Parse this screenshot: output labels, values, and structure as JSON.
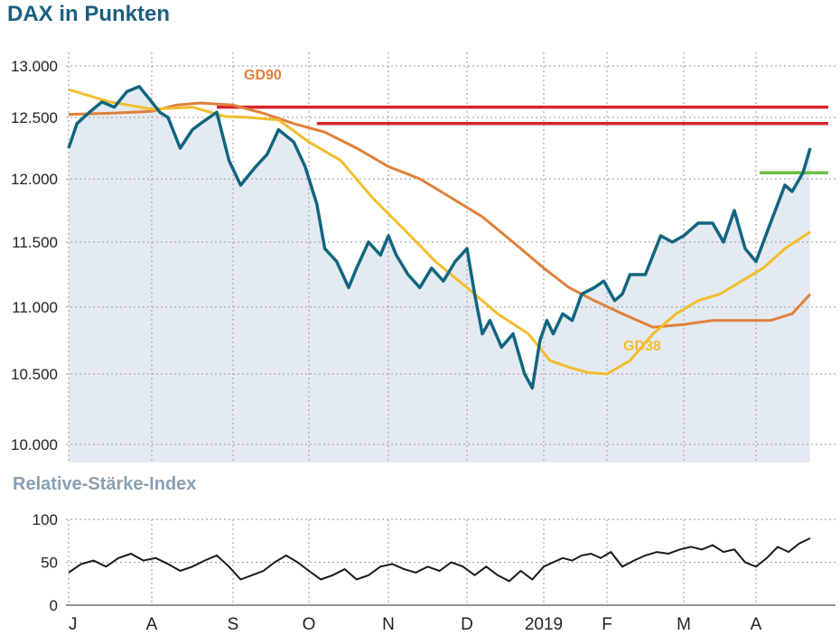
{
  "header": {
    "title": "DAX in Punkten",
    "rsi_title": "Relative-Stärke-Index"
  },
  "colors": {
    "dax_line": "#12657f",
    "dax_area": "#e4eaf1",
    "gd90": "#e0803a",
    "gd38": "#f2bd2e",
    "resistance": "#d9232e",
    "support": "#6cbe45",
    "rsi_line": "#1a1a1a",
    "grid": "#9a9a9a"
  },
  "chart_data": [
    {
      "type": "line",
      "title": "DAX in Punkten",
      "x_months": [
        "J",
        "A",
        "S",
        "O",
        "N",
        "D",
        "2019",
        "F",
        "M",
        "A"
      ],
      "x_range_months": [
        0,
        9.9
      ],
      "yticks": [
        "13.000",
        "12.500",
        "12.000",
        "11.500",
        "11.000",
        "10.500",
        "10.000"
      ],
      "ytick_values": [
        13000,
        12500,
        12000,
        11500,
        11000,
        10500,
        10000
      ],
      "ylim": [
        9900,
        13100
      ],
      "grid": "dotted",
      "series": [
        {
          "key": "dax",
          "fill_area": true,
          "x": [
            0,
            0.1,
            0.25,
            0.4,
            0.55,
            0.7,
            0.85,
            0.95,
            1.0,
            1.1,
            1.2,
            1.35,
            1.5,
            1.6,
            1.8,
            1.95,
            2.1,
            2.3,
            2.45,
            2.6,
            2.8,
            2.95,
            3.1,
            3.2,
            3.35,
            3.5,
            3.6,
            3.75,
            3.9,
            4.0,
            4.1,
            4.25,
            4.4,
            4.55,
            4.7,
            4.85,
            5.0,
            5.1,
            5.2,
            5.3,
            5.45,
            5.6,
            5.75,
            5.85,
            5.95,
            6.05,
            6.15,
            6.3,
            6.45,
            6.6,
            6.8,
            6.95,
            7.1,
            7.2,
            7.3,
            7.5,
            7.7,
            7.85,
            8.0,
            8.2,
            8.4,
            8.55,
            8.7,
            8.85,
            9.0,
            9.2,
            9.4,
            9.5,
            9.65,
            9.75
          ],
          "y": [
            12250,
            12450,
            12550,
            12650,
            12600,
            12750,
            12800,
            12700,
            12650,
            12550,
            12500,
            12250,
            12400,
            12450,
            12550,
            12150,
            11950,
            12100,
            12200,
            12400,
            12300,
            12100,
            11800,
            11450,
            11350,
            11150,
            11300,
            11500,
            11400,
            11550,
            11400,
            11250,
            11150,
            11300,
            11200,
            11350,
            11450,
            11100,
            10800,
            10900,
            10700,
            10800,
            10500,
            10400,
            10750,
            10900,
            10800,
            10950,
            10900,
            11100,
            11150,
            11200,
            11050,
            11100,
            11250,
            11250,
            11550,
            11500,
            11550,
            11650,
            11650,
            11500,
            11750,
            11450,
            11350,
            11650,
            11950,
            11900,
            12050,
            12250
          ]
        },
        {
          "key": "gd90",
          "name": "GD90",
          "x": [
            0,
            0.5,
            1.0,
            1.3,
            1.6,
            2.0,
            2.4,
            2.8,
            3.2,
            3.6,
            4.0,
            4.4,
            4.8,
            5.2,
            5.6,
            6.0,
            6.4,
            6.8,
            7.2,
            7.6,
            8.0,
            8.4,
            8.8,
            9.2,
            9.5,
            9.75
          ],
          "y": [
            12530,
            12540,
            12560,
            12620,
            12640,
            12620,
            12540,
            12450,
            12380,
            12250,
            12100,
            12000,
            11850,
            11700,
            11500,
            11300,
            11150,
            11050,
            10950,
            10850,
            10870,
            10900,
            10900,
            10900,
            10950,
            11100
          ]
        },
        {
          "key": "gd38",
          "name": "GD38",
          "x": [
            0,
            0.5,
            1.0,
            1.5,
            1.9,
            2.2,
            2.6,
            3.0,
            3.4,
            3.8,
            4.2,
            4.6,
            5.0,
            5.4,
            5.8,
            6.1,
            6.4,
            6.7,
            7.0,
            7.3,
            7.6,
            7.9,
            8.2,
            8.5,
            8.8,
            9.1,
            9.4,
            9.75
          ],
          "y": [
            12770,
            12650,
            12580,
            12600,
            12510,
            12500,
            12480,
            12300,
            12150,
            11850,
            11600,
            11350,
            11150,
            10950,
            10800,
            10600,
            10550,
            10510,
            10500,
            10600,
            10800,
            10950,
            11050,
            11100,
            11200,
            11300,
            11450,
            11580
          ]
        }
      ],
      "levels": [
        {
          "key": "resistance_upper",
          "y": 12600,
          "x_from": 1.8,
          "x_to": 10.0
        },
        {
          "key": "resistance_lower",
          "y": 12450,
          "x_from": 3.1,
          "x_to": 10.0
        },
        {
          "key": "support",
          "y": 12050,
          "x_from": 9.05,
          "x_to": 10.0
        }
      ],
      "annotations": [
        {
          "key": "gd90_label",
          "text": "GD90",
          "series": "gd90"
        },
        {
          "key": "gd38_label",
          "text": "GD38",
          "series": "gd38"
        }
      ]
    },
    {
      "type": "line",
      "title": "Relative-Stärke-Index",
      "yticks": [
        "100",
        "50",
        "0"
      ],
      "ytick_values": [
        100,
        50,
        0
      ],
      "ylim": [
        0,
        100
      ],
      "grid": "dotted",
      "series": [
        {
          "key": "rsi",
          "x": [
            0,
            0.15,
            0.3,
            0.45,
            0.6,
            0.75,
            0.9,
            1.05,
            1.2,
            1.35,
            1.5,
            1.65,
            1.8,
            1.95,
            2.1,
            2.25,
            2.4,
            2.55,
            2.7,
            2.85,
            3.0,
            3.15,
            3.3,
            3.45,
            3.6,
            3.75,
            3.9,
            4.05,
            4.2,
            4.35,
            4.5,
            4.65,
            4.8,
            4.95,
            5.1,
            5.25,
            5.4,
            5.55,
            5.7,
            5.85,
            6.0,
            6.15,
            6.3,
            6.45,
            6.6,
            6.75,
            6.9,
            7.05,
            7.2,
            7.35,
            7.5,
            7.65,
            7.8,
            7.95,
            8.1,
            8.25,
            8.4,
            8.55,
            8.7,
            8.85,
            9.0,
            9.15,
            9.3,
            9.45,
            9.6,
            9.75
          ],
          "y": [
            38,
            48,
            52,
            45,
            55,
            60,
            52,
            55,
            48,
            40,
            45,
            52,
            58,
            45,
            30,
            35,
            40,
            50,
            58,
            50,
            40,
            30,
            35,
            42,
            30,
            35,
            45,
            48,
            42,
            38,
            45,
            40,
            50,
            45,
            35,
            45,
            35,
            28,
            40,
            30,
            45,
            50,
            55,
            52,
            58,
            60,
            55,
            62,
            45,
            52,
            58,
            62,
            60,
            65,
            68,
            65,
            70,
            62,
            65,
            50,
            45,
            55,
            68,
            62,
            72,
            78
          ]
        }
      ]
    }
  ]
}
